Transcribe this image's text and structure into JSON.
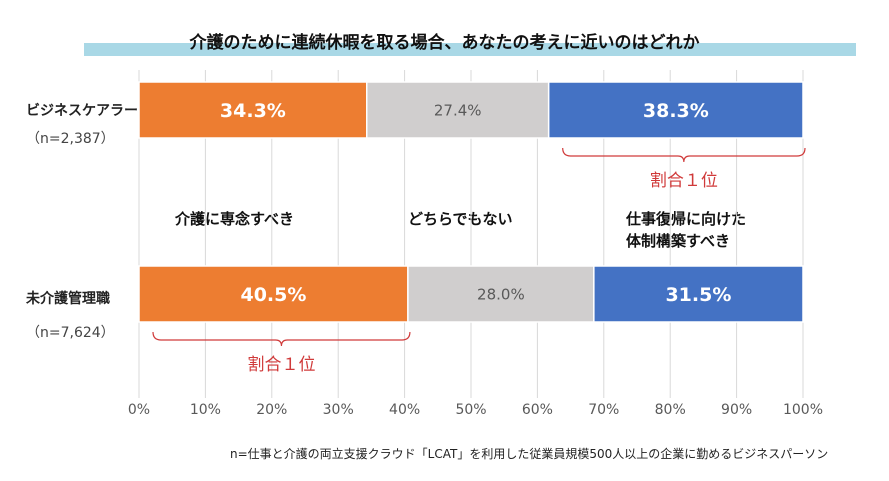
{
  "title": "介護のために連続休暇を取る場合、あなたの考えに近いのはどれか",
  "colors": {
    "dedicate": "#ed7d31",
    "neither": "#d0cece",
    "build_system": "#4472c4",
    "bracket": "#d03a3a",
    "grid": "#d9d9d9",
    "title_band": "#a9d8e6"
  },
  "chart_data": {
    "type": "bar",
    "orientation": "horizontal",
    "stacked": true,
    "title": "介護のために連続休暇を取る場合、あなたの考えに近いのはどれか",
    "categories": [
      "ビジネスケアラー",
      "未介護管理職"
    ],
    "category_n": [
      "（n=2,387）",
      "（n=7,624）"
    ],
    "series": [
      {
        "name": "介護に専念すべき",
        "values": [
          34.3,
          40.5
        ],
        "labels": [
          "34.3%",
          "40.5%"
        ]
      },
      {
        "name": "どちらでもない",
        "values": [
          27.4,
          28.0
        ],
        "labels": [
          "27.4%",
          "28.0%"
        ]
      },
      {
        "name": "仕事復帰に向けた体制構築すべき",
        "values": [
          38.3,
          31.5
        ],
        "labels": [
          "38.3%",
          "31.5%"
        ]
      }
    ],
    "xlim": [
      0,
      100
    ],
    "xticks": [
      "0%",
      "10%",
      "20%",
      "30%",
      "40%",
      "50%",
      "60%",
      "70%",
      "80%",
      "90%",
      "100%"
    ],
    "grid": true,
    "annotations": [
      {
        "row": 0,
        "series": 2,
        "text": "割合１位"
      },
      {
        "row": 1,
        "series": 0,
        "text": "割合１位"
      }
    ]
  },
  "legend_between": {
    "dedicate": "介護に専念すべき",
    "neither": "どちらでもない",
    "build_line1": "仕事復帰に向けた",
    "build_line2": "体制構築すべき"
  },
  "footnote": "n=仕事と介護の両立支援クラウド「LCAT」を利用した従業員規模500人以上の企業に勤めるビジネスパーソン"
}
